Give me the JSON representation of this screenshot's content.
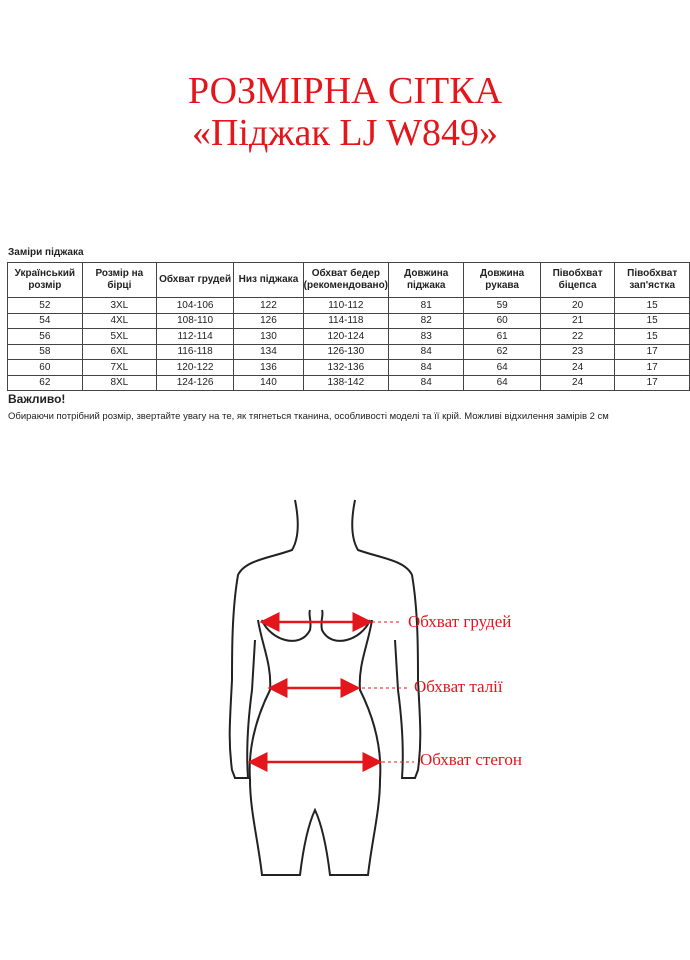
{
  "title_line1": "РОЗМІРНА СІТКА",
  "title_line2": "«Піджак LJ W849»",
  "table": {
    "caption": "Заміри піджака",
    "headers": [
      "Український розмір",
      "Розмір на бірці",
      "Обхват грудей",
      "Низ піджака",
      "Обхват бедер (рекомендовано)",
      "Довжина піджака",
      "Довжина рукава",
      "Півобхват біцепса",
      "Півобхват зап'ястка"
    ],
    "rows": [
      [
        "52",
        "3XL",
        "104-106",
        "122",
        "110-112",
        "81",
        "59",
        "20",
        "15"
      ],
      [
        "54",
        "4XL",
        "108-110",
        "126",
        "114-118",
        "82",
        "60",
        "21",
        "15"
      ],
      [
        "56",
        "5XL",
        "112-114",
        "130",
        "120-124",
        "83",
        "61",
        "22",
        "15"
      ],
      [
        "58",
        "6XL",
        "116-118",
        "134",
        "126-130",
        "84",
        "62",
        "23",
        "17"
      ],
      [
        "60",
        "7XL",
        "120-122",
        "136",
        "132-136",
        "84",
        "64",
        "24",
        "17"
      ],
      [
        "62",
        "8XL",
        "124-126",
        "140",
        "138-142",
        "84",
        "64",
        "24",
        "17"
      ]
    ]
  },
  "important_label": "Важливо!",
  "note": "Обираючи потрібний розмір, звертайте увагу на те, як тягнеться тканина, особливості моделі та її крій. Можливі відхилення замірів 2 см",
  "figure": {
    "labels": [
      "Обхват грудей",
      "Обхват талії",
      "Обхват стегон"
    ],
    "accent_color": "#e3161b"
  }
}
